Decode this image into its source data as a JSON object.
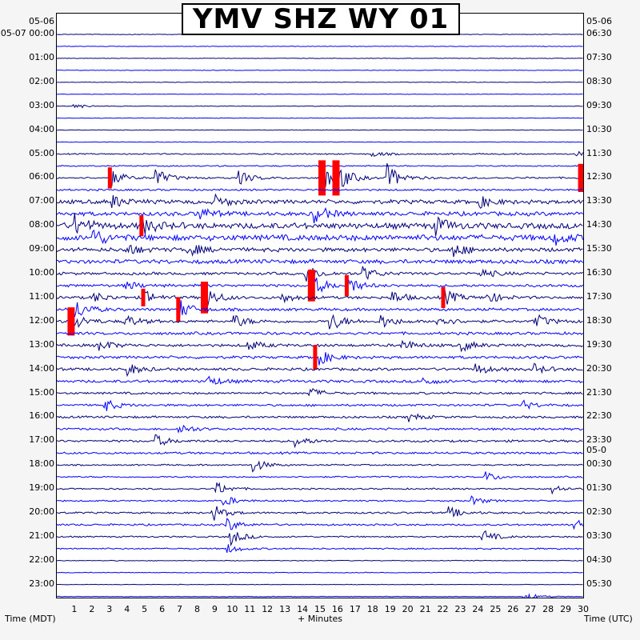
{
  "title": "YMV SHZ WY 01",
  "left_axis": {
    "date_top": "05-06",
    "date_first": "05-07",
    "labels": [
      "00:00",
      "01:00",
      "02:00",
      "03:00",
      "04:00",
      "05:00",
      "06:00",
      "07:00",
      "08:00",
      "09:00",
      "10:00",
      "11:00",
      "12:00",
      "13:00",
      "14:00",
      "15:00",
      "16:00",
      "17:00",
      "18:00",
      "19:00",
      "20:00",
      "21:00",
      "22:00",
      "23:00"
    ],
    "caption": "Time (MDT)"
  },
  "right_axis": {
    "date_top": "05-06",
    "date_mid": "05-0",
    "labels": [
      "06:30",
      "07:30",
      "08:30",
      "09:30",
      "10:30",
      "11:30",
      "12:30",
      "13:30",
      "14:30",
      "15:30",
      "16:30",
      "17:30",
      "18:30",
      "19:30",
      "20:30",
      "21:30",
      "22:30",
      "23:30",
      "00:30",
      "01:30",
      "02:30",
      "03:30",
      "04:30",
      "05:30"
    ],
    "caption": "Time (UTC)"
  },
  "x_axis": {
    "ticks": [
      "1",
      "2",
      "3",
      "4",
      "5",
      "6",
      "7",
      "8",
      "9",
      "10",
      "11",
      "12",
      "13",
      "14",
      "15",
      "16",
      "17",
      "18",
      "19",
      "20",
      "21",
      "22",
      "23",
      "24",
      "25",
      "26",
      "27",
      "28",
      "29",
      "30"
    ],
    "caption": "+ Minutes"
  },
  "chart_data": {
    "type": "helicorder",
    "title": "YMV SHZ WY 01",
    "xlabel": "+ Minutes",
    "xlim": [
      0,
      30
    ],
    "rows_per_hour": 2,
    "row_count": 48,
    "trace_colors": [
      "#00007a",
      "#0000ff"
    ],
    "clip_color": "#ff0000",
    "noise_by_hour": [
      0.3,
      0.3,
      0.3,
      0.3,
      0.3,
      0.7,
      1.0,
      2.2,
      3.2,
      2.2,
      1.5,
      1.5,
      1.5,
      1.5,
      1.5,
      1.2,
      1.2,
      1.2,
      0.8,
      0.8,
      1.0,
      0.8,
      0.4,
      0.3
    ],
    "events": [
      {
        "row": 6,
        "minute": 0.9,
        "amp": 4
      },
      {
        "row": 10,
        "minute": 17.9,
        "amp": 4
      },
      {
        "row": 10,
        "minute": 29.6,
        "amp": 3
      },
      {
        "row": 12,
        "minute": 3.0,
        "amp": 12,
        "clip": true
      },
      {
        "row": 12,
        "minute": 5.6,
        "amp": 12
      },
      {
        "row": 12,
        "minute": 10.3,
        "amp": 10
      },
      {
        "row": 12,
        "minute": 15.0,
        "amp": 20,
        "clip": true
      },
      {
        "row": 12,
        "minute": 15.8,
        "amp": 20,
        "clip": true
      },
      {
        "row": 12,
        "minute": 18.8,
        "amp": 18
      },
      {
        "row": 12,
        "minute": 29.8,
        "amp": 16,
        "clip": true
      },
      {
        "row": 14,
        "minute": 3.0,
        "amp": 10
      },
      {
        "row": 14,
        "minute": 9.0,
        "amp": 8
      },
      {
        "row": 14,
        "minute": 24.0,
        "amp": 8
      },
      {
        "row": 15,
        "minute": 8.0,
        "amp": 10
      },
      {
        "row": 15,
        "minute": 14.6,
        "amp": 14
      },
      {
        "row": 16,
        "minute": 1.0,
        "amp": 14
      },
      {
        "row": 16,
        "minute": 4.8,
        "amp": 12,
        "clip": true
      },
      {
        "row": 16,
        "minute": 21.5,
        "amp": 12
      },
      {
        "row": 17,
        "minute": 2.0,
        "amp": 12
      },
      {
        "row": 17,
        "minute": 28.2,
        "amp": 10
      },
      {
        "row": 18,
        "minute": 3.9,
        "amp": 8
      },
      {
        "row": 18,
        "minute": 7.4,
        "amp": 10
      },
      {
        "row": 18,
        "minute": 22.5,
        "amp": 10
      },
      {
        "row": 20,
        "minute": 14.1,
        "amp": 14
      },
      {
        "row": 20,
        "minute": 17.4,
        "amp": 10
      },
      {
        "row": 20,
        "minute": 24.0,
        "amp": 8
      },
      {
        "row": 21,
        "minute": 3.9,
        "amp": 6
      },
      {
        "row": 21,
        "minute": 14.4,
        "amp": 18,
        "clip": true
      },
      {
        "row": 21,
        "minute": 16.5,
        "amp": 12,
        "clip": true
      },
      {
        "row": 22,
        "minute": 2.0,
        "amp": 8
      },
      {
        "row": 22,
        "minute": 4.9,
        "amp": 10,
        "clip": true
      },
      {
        "row": 22,
        "minute": 8.3,
        "amp": 18,
        "clip": true
      },
      {
        "row": 22,
        "minute": 12.7,
        "amp": 8
      },
      {
        "row": 22,
        "minute": 19.0,
        "amp": 10
      },
      {
        "row": 22,
        "minute": 22.0,
        "amp": 12,
        "clip": true
      },
      {
        "row": 22,
        "minute": 24.5,
        "amp": 8
      },
      {
        "row": 23,
        "minute": 1.0,
        "amp": 14
      },
      {
        "row": 23,
        "minute": 6.9,
        "amp": 14,
        "clip": true
      },
      {
        "row": 24,
        "minute": 0.7,
        "amp": 16,
        "clip": true
      },
      {
        "row": 24,
        "minute": 3.8,
        "amp": 10
      },
      {
        "row": 24,
        "minute": 10.0,
        "amp": 10
      },
      {
        "row": 24,
        "minute": 15.5,
        "amp": 14
      },
      {
        "row": 24,
        "minute": 18.4,
        "amp": 10
      },
      {
        "row": 24,
        "minute": 21.6,
        "amp": 10
      },
      {
        "row": 24,
        "minute": 27.2,
        "amp": 10
      },
      {
        "row": 26,
        "minute": 2.4,
        "amp": 8
      },
      {
        "row": 26,
        "minute": 10.8,
        "amp": 8
      },
      {
        "row": 26,
        "minute": 19.6,
        "amp": 8
      },
      {
        "row": 26,
        "minute": 23.0,
        "amp": 8
      },
      {
        "row": 27,
        "minute": 14.7,
        "amp": 14,
        "clip": true
      },
      {
        "row": 28,
        "minute": 4.0,
        "amp": 8
      },
      {
        "row": 28,
        "minute": 23.8,
        "amp": 8
      },
      {
        "row": 28,
        "minute": 27.2,
        "amp": 6
      },
      {
        "row": 29,
        "minute": 8.5,
        "amp": 8
      },
      {
        "row": 29,
        "minute": 20.8,
        "amp": 6
      },
      {
        "row": 30,
        "minute": 14.3,
        "amp": 8
      },
      {
        "row": 31,
        "minute": 2.6,
        "amp": 10
      },
      {
        "row": 31,
        "minute": 26.5,
        "amp": 6
      },
      {
        "row": 32,
        "minute": 20.0,
        "amp": 6
      },
      {
        "row": 33,
        "minute": 6.9,
        "amp": 8
      },
      {
        "row": 34,
        "minute": 5.6,
        "amp": 8
      },
      {
        "row": 34,
        "minute": 13.5,
        "amp": 8
      },
      {
        "row": 36,
        "minute": 11.1,
        "amp": 10
      },
      {
        "row": 37,
        "minute": 24.3,
        "amp": 8
      },
      {
        "row": 38,
        "minute": 9.0,
        "amp": 10
      },
      {
        "row": 38,
        "minute": 28.2,
        "amp": 6
      },
      {
        "row": 39,
        "minute": 9.4,
        "amp": 8
      },
      {
        "row": 39,
        "minute": 23.6,
        "amp": 6
      },
      {
        "row": 40,
        "minute": 8.8,
        "amp": 12
      },
      {
        "row": 40,
        "minute": 22.3,
        "amp": 8
      },
      {
        "row": 41,
        "minute": 9.6,
        "amp": 10
      },
      {
        "row": 41,
        "minute": 29.4,
        "amp": 10
      },
      {
        "row": 42,
        "minute": 9.8,
        "amp": 12
      },
      {
        "row": 42,
        "minute": 24.2,
        "amp": 10
      },
      {
        "row": 43,
        "minute": 9.7,
        "amp": 6
      },
      {
        "row": 47,
        "minute": 26.6,
        "amp": 6
      }
    ]
  }
}
